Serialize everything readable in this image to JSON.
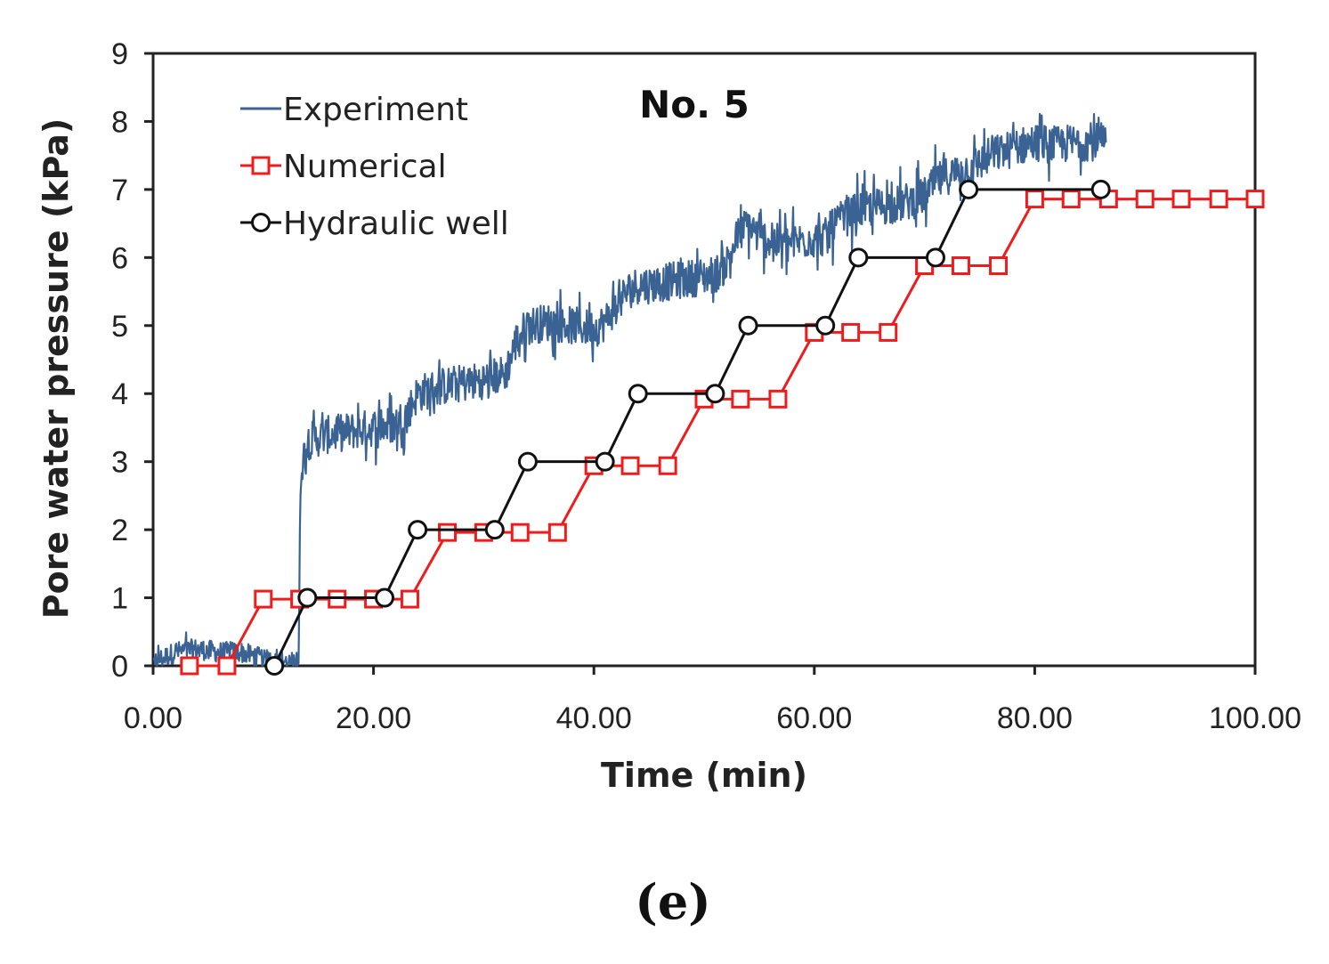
{
  "chart_data": {
    "type": "line",
    "annotation": "No. 5",
    "xlabel": "Time (min)",
    "ylabel": "Pore water pressure (kPa)",
    "xlim": [
      0,
      100
    ],
    "ylim": [
      0,
      9
    ],
    "xticks": [
      "0.00",
      "20.00",
      "40.00",
      "60.00",
      "80.00",
      "100.00"
    ],
    "xtick_values": [
      0,
      20,
      40,
      60,
      80,
      100
    ],
    "yticks": [
      "0",
      "1",
      "2",
      "3",
      "4",
      "5",
      "6",
      "7",
      "8",
      "9"
    ],
    "ytick_values": [
      0,
      1,
      2,
      3,
      4,
      5,
      6,
      7,
      8,
      9
    ],
    "grid": false,
    "legend_position": "top-left",
    "caption": "(e)",
    "series": [
      {
        "name": "Experiment",
        "color": "#3a6394",
        "marker": "none",
        "noise_amplitude": 0.35,
        "x": [
          0,
          2,
          4,
          6,
          8,
          10,
          12,
          13.2,
          13.4,
          14,
          16,
          18,
          20,
          22,
          23,
          24,
          26,
          28,
          30,
          32,
          33,
          34,
          36,
          38,
          40,
          41,
          42,
          43,
          44,
          45,
          47,
          49,
          51,
          52,
          53,
          54,
          55,
          57,
          59,
          61,
          62,
          63,
          64,
          66,
          68,
          70,
          71,
          72,
          74,
          76,
          78,
          80,
          82,
          84,
          86.5
        ],
        "y": [
          0.05,
          0.2,
          0.25,
          0.2,
          0.2,
          0.1,
          0.05,
          0.05,
          2.9,
          3.3,
          3.4,
          3.45,
          3.5,
          3.55,
          3.7,
          4.0,
          4.1,
          4.15,
          4.2,
          4.3,
          4.8,
          5.0,
          5.05,
          5.0,
          4.95,
          5.05,
          5.3,
          5.5,
          5.6,
          5.6,
          5.65,
          5.7,
          5.75,
          5.9,
          6.3,
          6.5,
          6.3,
          6.2,
          6.25,
          6.3,
          6.5,
          6.6,
          6.7,
          6.75,
          6.8,
          6.9,
          7.1,
          7.2,
          7.3,
          7.5,
          7.6,
          7.7,
          7.65,
          7.7,
          7.7
        ]
      },
      {
        "name": "Numerical",
        "color": "#ee1c1c",
        "marker": "square",
        "x": [
          3.3,
          6.7,
          10.0,
          13.3,
          16.7,
          20.0,
          23.3,
          26.7,
          30.0,
          33.3,
          36.7,
          40.0,
          43.3,
          46.7,
          50.0,
          53.3,
          56.7,
          60.0,
          63.3,
          66.7,
          70.0,
          73.3,
          76.7,
          80.0,
          83.3,
          86.7,
          90.0,
          93.3,
          96.7,
          100.0
        ],
        "y": [
          0,
          0,
          0.98,
          0.98,
          0.98,
          0.98,
          0.98,
          1.96,
          1.96,
          1.96,
          1.96,
          2.94,
          2.94,
          2.94,
          3.92,
          3.92,
          3.92,
          4.9,
          4.9,
          4.9,
          5.88,
          5.88,
          5.88,
          6.86,
          6.86,
          6.86,
          6.86,
          6.86,
          6.86,
          6.86
        ]
      },
      {
        "name": "Hydraulic well",
        "color": "#111111",
        "marker": "circle",
        "x": [
          11.0,
          14.0,
          21.0,
          24.0,
          31.0,
          34.0,
          41.0,
          44.0,
          51.0,
          54.0,
          61.0,
          64.0,
          71.0,
          74.0,
          86.0
        ],
        "y": [
          0,
          1,
          1,
          2,
          2,
          3,
          3,
          4,
          4,
          5,
          5,
          6,
          6,
          7,
          7
        ]
      }
    ]
  }
}
